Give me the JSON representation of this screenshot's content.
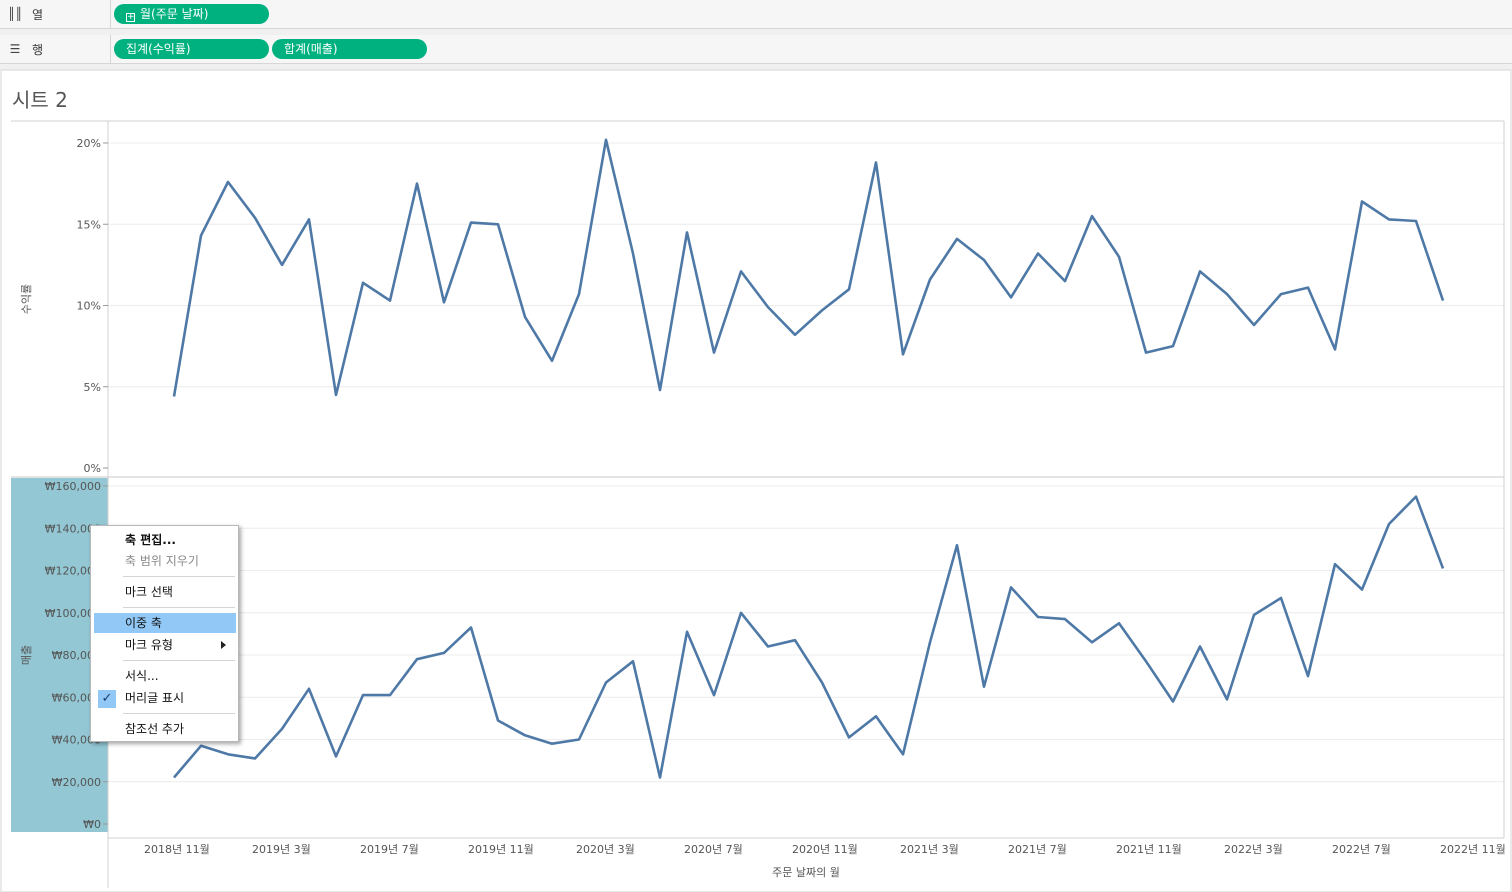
{
  "shelves": {
    "columns": {
      "icon": "columns-shelf-icon",
      "label": "열",
      "pills": [
        "월(주문 날짜)"
      ]
    },
    "rows": {
      "icon": "rows-shelf-icon",
      "label": "행",
      "pills": [
        "집계(수익률)",
        "합계(매출)"
      ]
    }
  },
  "sheet": {
    "title": "시트 2"
  },
  "colors": {
    "pill": "#00b180",
    "line": "#4e79a7",
    "axis_highlight": "#93c7d4",
    "menu_highlight": "#91c8f5"
  },
  "chart_data": [
    {
      "type": "line",
      "ylabel": "수익률",
      "ylim": [
        0,
        0.2
      ],
      "ytick_labels": [
        "20%",
        "15%",
        "10%",
        "5%",
        "0%"
      ],
      "ytick_values": [
        0.2,
        0.15,
        0.1,
        0.05,
        0.0
      ],
      "x_start": "2018-11",
      "series": [
        {
          "values": [
            0.044,
            0.143,
            0.176,
            0.154,
            0.125,
            0.153,
            0.045,
            0.114,
            0.103,
            0.175,
            0.102,
            0.151,
            0.15,
            0.093,
            0.066,
            0.107,
            0.202,
            0.132,
            0.048,
            0.145,
            0.071,
            0.121,
            0.099,
            0.082,
            0.097,
            0.11,
            0.188,
            0.07,
            0.116,
            0.141,
            0.128,
            0.105,
            0.132,
            0.115,
            0.155,
            0.13,
            0.071,
            0.075,
            0.121,
            0.107,
            0.088,
            0.107,
            0.111,
            0.073,
            0.164,
            0.153,
            0.152,
            0.103
          ]
        }
      ]
    },
    {
      "type": "line",
      "ylabel": "매출",
      "ylim": [
        0,
        160000
      ],
      "ytick_labels": [
        "₩160,000",
        "₩140,000",
        "₩120,000",
        "₩100,000",
        "₩80,000",
        "₩60,000",
        "₩40,000",
        "₩20,000",
        "₩0"
      ],
      "ytick_values": [
        160000,
        140000,
        120000,
        100000,
        80000,
        60000,
        40000,
        20000,
        0
      ],
      "x_start": "2018-11",
      "series": [
        {
          "values": [
            22000,
            37000,
            33000,
            31000,
            45000,
            64000,
            32000,
            61000,
            61000,
            78000,
            81000,
            93000,
            49000,
            42000,
            38000,
            40000,
            67000,
            77000,
            22000,
            91000,
            61000,
            100000,
            84000,
            87000,
            67000,
            41000,
            51000,
            33000,
            86000,
            132000,
            65000,
            112000,
            98000,
            97000,
            86000,
            95000,
            77000,
            58000,
            84000,
            59000,
            99000,
            107000,
            70000,
            123000,
            111000,
            142000,
            155000,
            121000
          ]
        }
      ]
    }
  ],
  "x_axis": {
    "title": "주문 날짜의 월",
    "tick_labels": [
      "2018년 11월",
      "2019년 3월",
      "2019년 7월",
      "2019년 11월",
      "2020년 3월",
      "2020년 7월",
      "2020년 11월",
      "2021년 3월",
      "2021년 7월",
      "2021년 11월",
      "2022년 3월",
      "2022년 7월",
      "2022년 11월"
    ],
    "tick_step_months": 4
  },
  "context_menu": {
    "items": [
      {
        "label": "축 편집...",
        "style": "bold"
      },
      {
        "label": "축 범위 지우기",
        "style": "disabled"
      },
      {
        "label": "마크 선택",
        "style": "normal"
      },
      {
        "label": "이중 축",
        "style": "highlighted"
      },
      {
        "label": "마크 유형",
        "style": "submenu"
      },
      {
        "label": "서식...",
        "style": "normal"
      },
      {
        "label": "머리글 표시",
        "style": "checked"
      },
      {
        "label": "참조선 추가",
        "style": "normal"
      }
    ]
  }
}
